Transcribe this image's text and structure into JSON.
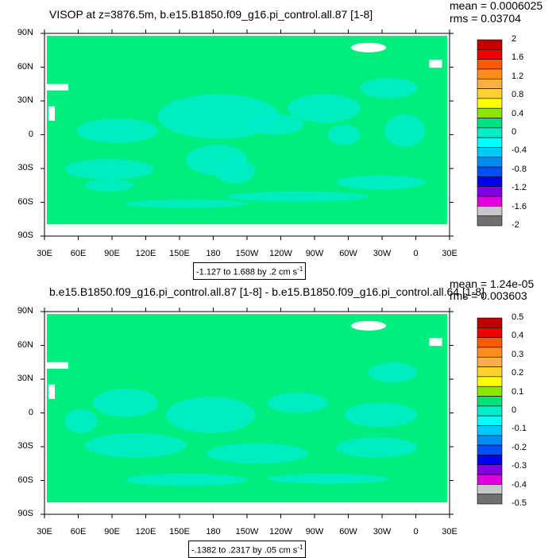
{
  "panels": [
    {
      "title": "VISOP at z=3876.5m, b.e15.B1850.f09_g16.pi_control.all.87 [1-8]",
      "mean": "mean = 0.0006025",
      "rms": "rms = 0.03704",
      "range": "-1.127 to 1.688 by .2 cm s",
      "range_unit_exp": "-1",
      "colorbar_labels": [
        "2",
        "1.6",
        "1.2",
        "0.8",
        "0.4",
        "0",
        "-0.4",
        "-0.8",
        "-1.2",
        "-1.6",
        "-2"
      ]
    },
    {
      "title": "b.e15.B1850.f09_g16.pi_control.all.87 [1-8] - b.e15.B1850.f09_g16.pi_control.all.64 [1-8]",
      "mean": "mean = 1.24e-05",
      "rms": "rms = 0.003603",
      "range": "-.1382 to .2317 by .05 cm s",
      "range_unit_exp": "-1",
      "colorbar_labels": [
        "0.5",
        "0.4",
        "0.3",
        "0.2",
        "0.1",
        "0",
        "-0.1",
        "-0.2",
        "-0.3",
        "-0.4",
        "-0.5"
      ]
    }
  ],
  "lat_labels": [
    "90N",
    "60N",
    "30N",
    "0",
    "30S",
    "60S",
    "90S"
  ],
  "lon_labels": [
    "30E",
    "60E",
    "90E",
    "120E",
    "150E",
    "180",
    "150W",
    "120W",
    "90W",
    "60W",
    "30W",
    "0",
    "30E"
  ],
  "colorbar_colors": [
    "#c00000",
    "#ee0000",
    "#ff5a00",
    "#ff8c1e",
    "#ffae46",
    "#ffd030",
    "#ffff00",
    "#88e600",
    "#00e080",
    "#00eec8",
    "#00ffff",
    "#00c8ff",
    "#008cf0",
    "#0050ff",
    "#0000ee",
    "#8000e0",
    "#e000e0",
    "#c8c8c8",
    "#707070"
  ],
  "colors": {
    "ocean_fill": "#00ee80",
    "anomaly_fill": "#00ecca",
    "land_mask": "#ffffff"
  }
}
